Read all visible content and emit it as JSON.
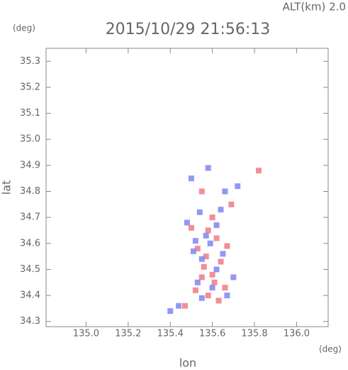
{
  "chart_data": {
    "type": "scatter",
    "title": "2015/10/29 21:56:13",
    "altitude_label": "ALT(km)  2.0",
    "y_unit": "(deg)",
    "x_unit": "(deg)",
    "xlabel": "lon",
    "ylabel": "lat",
    "xlim": [
      134.81,
      136.15
    ],
    "ylim": [
      34.28,
      35.35
    ],
    "xticks": [
      {
        "value": 135,
        "label": "135.0"
      },
      135.2,
      135.4,
      135.6,
      135.8,
      {
        "value": 136,
        "label": "136.0"
      }
    ],
    "yticks": [
      34.3,
      34.4,
      34.5,
      34.6,
      34.7,
      34.8,
      34.9,
      {
        "value": 35,
        "label": "35.0"
      },
      35.1,
      35.2,
      35.3
    ],
    "series": [
      {
        "color": "#f07a86",
        "x": [
          135.55,
          135.82,
          135.6,
          135.58,
          135.62,
          135.53,
          135.57,
          135.64,
          135.6,
          135.55,
          135.66,
          135.58,
          135.52,
          135.47,
          135.63,
          135.5,
          135.67,
          135.56,
          135.61,
          135.69
        ],
        "values": [
          34.8,
          34.88,
          34.7,
          34.65,
          34.62,
          34.58,
          34.55,
          34.53,
          34.48,
          34.47,
          34.43,
          34.4,
          34.42,
          34.36,
          34.38,
          34.66,
          34.59,
          34.51,
          34.45,
          34.75
        ]
      },
      {
        "color": "#7f86f2",
        "x": [
          135.5,
          135.58,
          135.66,
          135.72,
          135.54,
          135.48,
          135.62,
          135.52,
          135.59,
          135.65,
          135.55,
          135.62,
          135.7,
          135.53,
          135.6,
          135.67,
          135.55,
          135.44,
          135.4,
          135.57,
          135.64,
          135.51
        ],
        "values": [
          34.85,
          34.89,
          34.8,
          34.82,
          34.72,
          34.68,
          34.67,
          34.61,
          34.6,
          34.56,
          34.54,
          34.5,
          34.47,
          34.45,
          34.43,
          34.4,
          34.39,
          34.36,
          34.34,
          34.63,
          34.73,
          34.57
        ]
      }
    ]
  }
}
